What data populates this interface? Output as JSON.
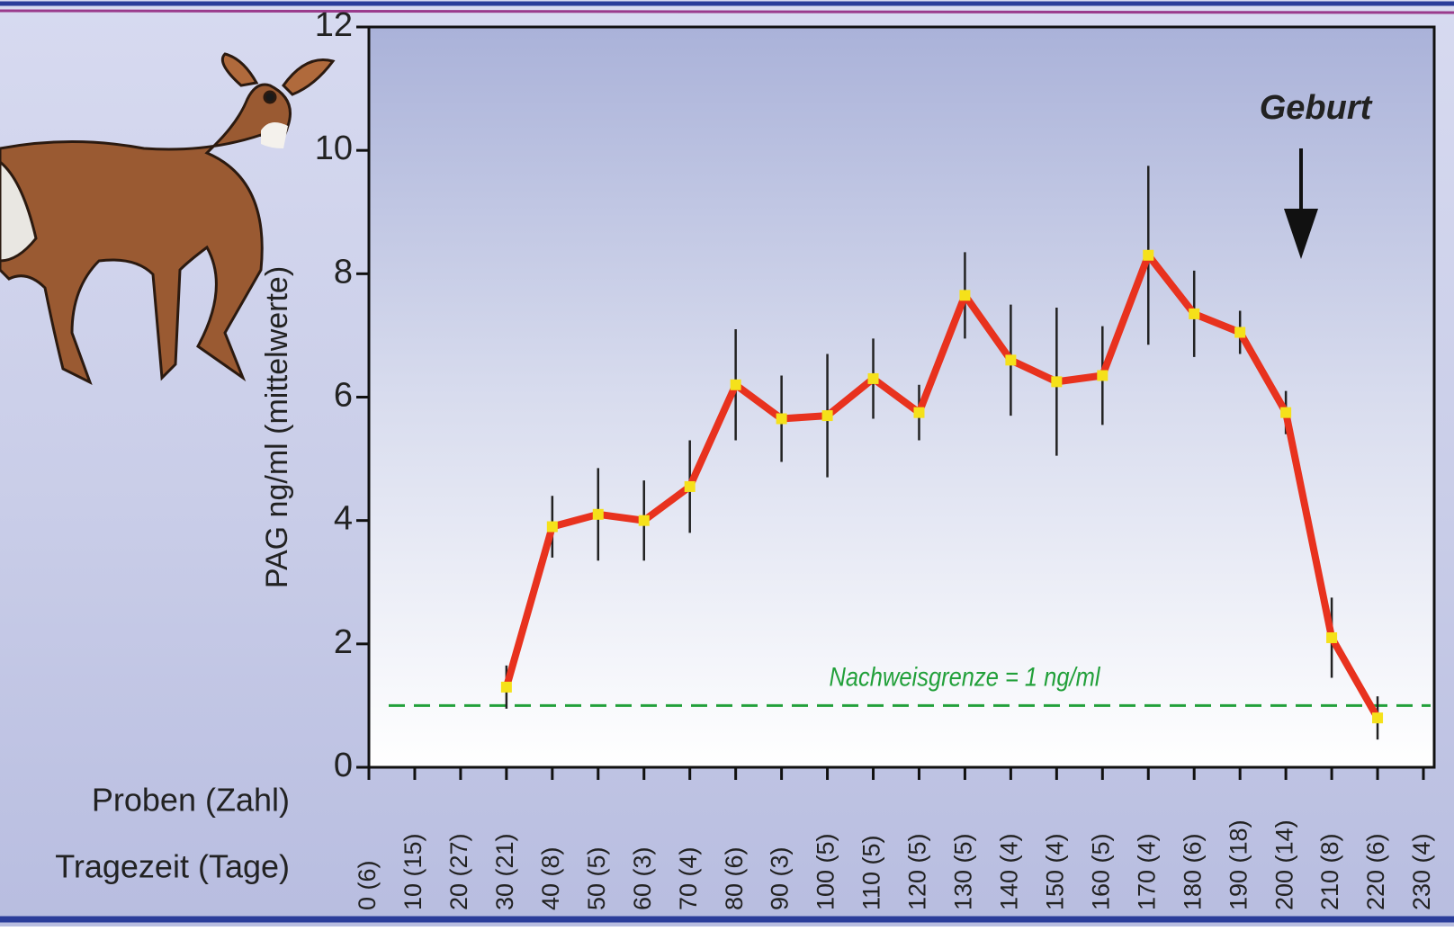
{
  "chart_data": {
    "type": "line",
    "ylabel": "PAG  ng/ml (mittelwerte)",
    "row_labels": [
      "Proben (Zahl)",
      "Tragezeit (Tage)"
    ],
    "x": [
      30,
      40,
      50,
      60,
      70,
      80,
      90,
      100,
      110,
      120,
      130,
      140,
      150,
      160,
      170,
      180,
      190,
      200,
      210,
      220
    ],
    "series": [
      {
        "color": "#e8321e",
        "marker_color": "#f5e11a",
        "values": [
          1.3,
          3.9,
          4.1,
          4.0,
          4.55,
          6.2,
          5.65,
          5.7,
          6.3,
          5.75,
          7.65,
          6.6,
          6.25,
          6.35,
          8.3,
          7.35,
          7.05,
          5.75,
          2.1,
          0.8
        ],
        "errors": [
          0.35,
          0.5,
          0.75,
          0.65,
          0.75,
          0.9,
          0.7,
          1.0,
          0.65,
          0.45,
          0.7,
          0.9,
          1.2,
          0.8,
          1.45,
          0.7,
          0.35,
          0.35,
          0.65,
          0.35
        ]
      }
    ],
    "xlim": [
      0,
      230
    ],
    "ylim": [
      0,
      12
    ],
    "yticks": [
      0,
      2,
      4,
      6,
      8,
      10,
      12
    ],
    "xticks": [
      {
        "value": 0,
        "label": "0 (6)"
      },
      {
        "value": 10,
        "label": "10 (15)"
      },
      {
        "value": 20,
        "label": "20 (27)"
      },
      {
        "value": 30,
        "label": "30 (21)"
      },
      {
        "value": 40,
        "label": "40 (8)"
      },
      {
        "value": 50,
        "label": "50 (5)"
      },
      {
        "value": 60,
        "label": "60 (3)"
      },
      {
        "value": 70,
        "label": "70 (4)"
      },
      {
        "value": 80,
        "label": "80 (6)"
      },
      {
        "value": 90,
        "label": "90 (3)"
      },
      {
        "value": 100,
        "label": "100 (5)"
      },
      {
        "value": 110,
        "label": "110 (5)"
      },
      {
        "value": 120,
        "label": "120 (5)"
      },
      {
        "value": 130,
        "label": "130 (5)"
      },
      {
        "value": 140,
        "label": "140 (4)"
      },
      {
        "value": 150,
        "label": "150 (4)"
      },
      {
        "value": 160,
        "label": "160 (5)"
      },
      {
        "value": 170,
        "label": "170 (4)"
      },
      {
        "value": 180,
        "label": "180 (6)"
      },
      {
        "value": 190,
        "label": "190 (18)"
      },
      {
        "value": 200,
        "label": "200 (14)"
      },
      {
        "value": 210,
        "label": "210 (8)"
      },
      {
        "value": 220,
        "label": "220 (6)"
      },
      {
        "value": 230,
        "label": "230 (4)"
      }
    ],
    "detection_limit": {
      "value": 1,
      "label": "Nachweisgrenze = 1 ng/ml",
      "color": "#22a03a"
    },
    "annotation": {
      "text": "Geburt"
    }
  }
}
